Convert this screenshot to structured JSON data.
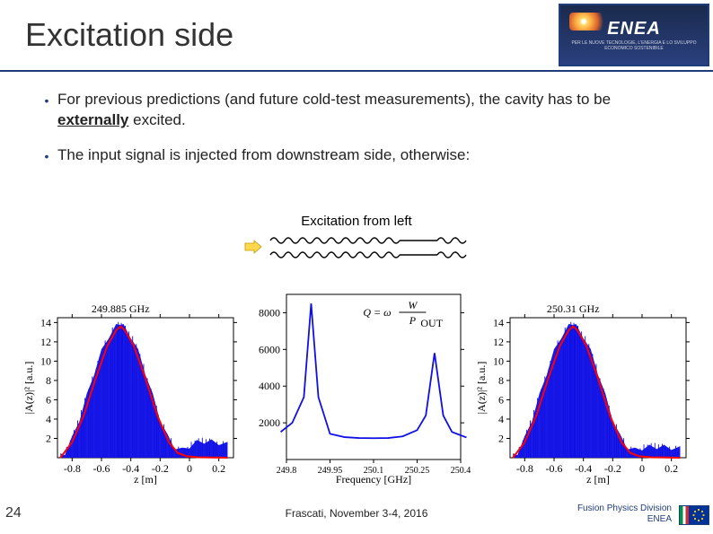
{
  "title": "Excitation side",
  "logo": {
    "brand": "ENEA",
    "sub": "PER LE NUOVE TECNOLOGIE, L'ENERGIA E LO SVILUPPO ECONOMICO SOSTENIBILE"
  },
  "bullets": [
    {
      "pre": "For previous predictions (and future cold-test measurements), the cavity has to be ",
      "emph": "externally",
      "post": " excited."
    },
    {
      "full": "The input signal is injected from downstream side, otherwise:"
    }
  ],
  "excitation_label": "Excitation from left",
  "colors": {
    "fill": "#1010e6",
    "curve": "#ff0000",
    "axis": "#000000",
    "accent": "#1f3d7a"
  },
  "chart_left": {
    "type": "filled-curve",
    "peak_label": "249.885 GHz",
    "x": {
      "label": "z [m]",
      "min": -0.9,
      "max": 0.3,
      "ticks": [
        -0.8,
        -0.6,
        -0.4,
        -0.2,
        0,
        0.2
      ]
    },
    "y": {
      "label": "|A(z)|²  [a.u.]",
      "min": 0,
      "max": 14.5,
      "ticks": [
        2,
        4,
        6,
        8,
        10,
        12,
        14
      ]
    },
    "blue_points": [
      [
        -0.88,
        0.2
      ],
      [
        -0.85,
        0.5
      ],
      [
        -0.8,
        2.0
      ],
      [
        -0.75,
        4.0
      ],
      [
        -0.7,
        6.4
      ],
      [
        -0.65,
        8.8
      ],
      [
        -0.6,
        11.0
      ],
      [
        -0.55,
        12.6
      ],
      [
        -0.5,
        13.6
      ],
      [
        -0.47,
        14.0
      ],
      [
        -0.45,
        13.6
      ],
      [
        -0.4,
        12.6
      ],
      [
        -0.35,
        11.0
      ],
      [
        -0.3,
        8.8
      ],
      [
        -0.25,
        6.4
      ],
      [
        -0.2,
        4.0
      ],
      [
        -0.15,
        2.2
      ],
      [
        -0.1,
        1.1
      ],
      [
        -0.05,
        0.8
      ],
      [
        0,
        1.2
      ],
      [
        0.05,
        1.6
      ],
      [
        0.1,
        1.7
      ],
      [
        0.15,
        1.65
      ],
      [
        0.2,
        1.55
      ],
      [
        0.26,
        1.4
      ]
    ],
    "red_points": [
      [
        -0.88,
        0.0
      ],
      [
        -0.8,
        1.6
      ],
      [
        -0.72,
        4.4
      ],
      [
        -0.64,
        8.2
      ],
      [
        -0.56,
        11.6
      ],
      [
        -0.5,
        13.2
      ],
      [
        -0.47,
        13.6
      ],
      [
        -0.44,
        13.2
      ],
      [
        -0.38,
        11.6
      ],
      [
        -0.3,
        8.2
      ],
      [
        -0.22,
        4.4
      ],
      [
        -0.14,
        1.6
      ],
      [
        -0.08,
        0.5
      ],
      [
        -0.02,
        0.15
      ],
      [
        0.06,
        0.05
      ],
      [
        0.26,
        0.0
      ]
    ]
  },
  "chart_center": {
    "type": "line",
    "formula": "Q = ω · W / P_OUT",
    "x": {
      "label": "Frequency [GHz]",
      "ticks": [
        249.8,
        249.95,
        250.1,
        250.25,
        250.4
      ]
    },
    "y": {
      "min": 0,
      "max": 9000,
      "ticks": [
        2000,
        4000,
        6000,
        8000
      ]
    },
    "points": [
      [
        249.78,
        1500
      ],
      [
        249.82,
        2000
      ],
      [
        249.86,
        3400
      ],
      [
        249.885,
        8500
      ],
      [
        249.91,
        3400
      ],
      [
        249.95,
        1400
      ],
      [
        250.0,
        1220
      ],
      [
        250.05,
        1170
      ],
      [
        250.1,
        1160
      ],
      [
        250.15,
        1170
      ],
      [
        250.2,
        1260
      ],
      [
        250.25,
        1600
      ],
      [
        250.28,
        2400
      ],
      [
        250.31,
        5800
      ],
      [
        250.34,
        2400
      ],
      [
        250.37,
        1500
      ],
      [
        250.42,
        1200
      ]
    ]
  },
  "chart_right": {
    "type": "filled-curve",
    "peak_label": "250.31 GHz",
    "x": {
      "label": "z [m]",
      "min": -0.9,
      "max": 0.3,
      "ticks": [
        -0.8,
        -0.6,
        -0.4,
        -0.2,
        0,
        0.2
      ]
    },
    "y": {
      "label": "|A(z)|²  [a.u.]",
      "min": 0,
      "max": 14.5,
      "ticks": [
        2,
        4,
        6,
        8,
        10,
        12,
        14
      ]
    },
    "blue_points": [
      [
        -0.88,
        0.2
      ],
      [
        -0.85,
        0.5
      ],
      [
        -0.8,
        2.0
      ],
      [
        -0.75,
        4.0
      ],
      [
        -0.7,
        6.4
      ],
      [
        -0.65,
        8.8
      ],
      [
        -0.6,
        11.0
      ],
      [
        -0.55,
        12.6
      ],
      [
        -0.5,
        13.6
      ],
      [
        -0.47,
        14.0
      ],
      [
        -0.45,
        13.6
      ],
      [
        -0.4,
        12.6
      ],
      [
        -0.35,
        11.0
      ],
      [
        -0.3,
        8.8
      ],
      [
        -0.25,
        6.4
      ],
      [
        -0.2,
        4.0
      ],
      [
        -0.15,
        2.2
      ],
      [
        -0.1,
        1.1
      ],
      [
        -0.05,
        0.8
      ],
      [
        0,
        1.0
      ],
      [
        0.05,
        1.1
      ],
      [
        0.1,
        1.15
      ],
      [
        0.15,
        1.1
      ],
      [
        0.2,
        1.05
      ],
      [
        0.26,
        0.95
      ]
    ],
    "red_points": [
      [
        -0.88,
        0.0
      ],
      [
        -0.8,
        1.6
      ],
      [
        -0.72,
        4.4
      ],
      [
        -0.64,
        8.2
      ],
      [
        -0.56,
        11.6
      ],
      [
        -0.5,
        13.2
      ],
      [
        -0.47,
        13.6
      ],
      [
        -0.44,
        13.2
      ],
      [
        -0.38,
        11.6
      ],
      [
        -0.3,
        8.2
      ],
      [
        -0.22,
        4.4
      ],
      [
        -0.14,
        1.6
      ],
      [
        -0.08,
        0.5
      ],
      [
        -0.02,
        0.15
      ],
      [
        0.06,
        0.05
      ],
      [
        0.26,
        0.0
      ]
    ]
  },
  "footer": {
    "page": "24",
    "center": "Frascati, November 3-4, 2016",
    "right1": "Fusion Physics Division",
    "right2": "ENEA"
  }
}
